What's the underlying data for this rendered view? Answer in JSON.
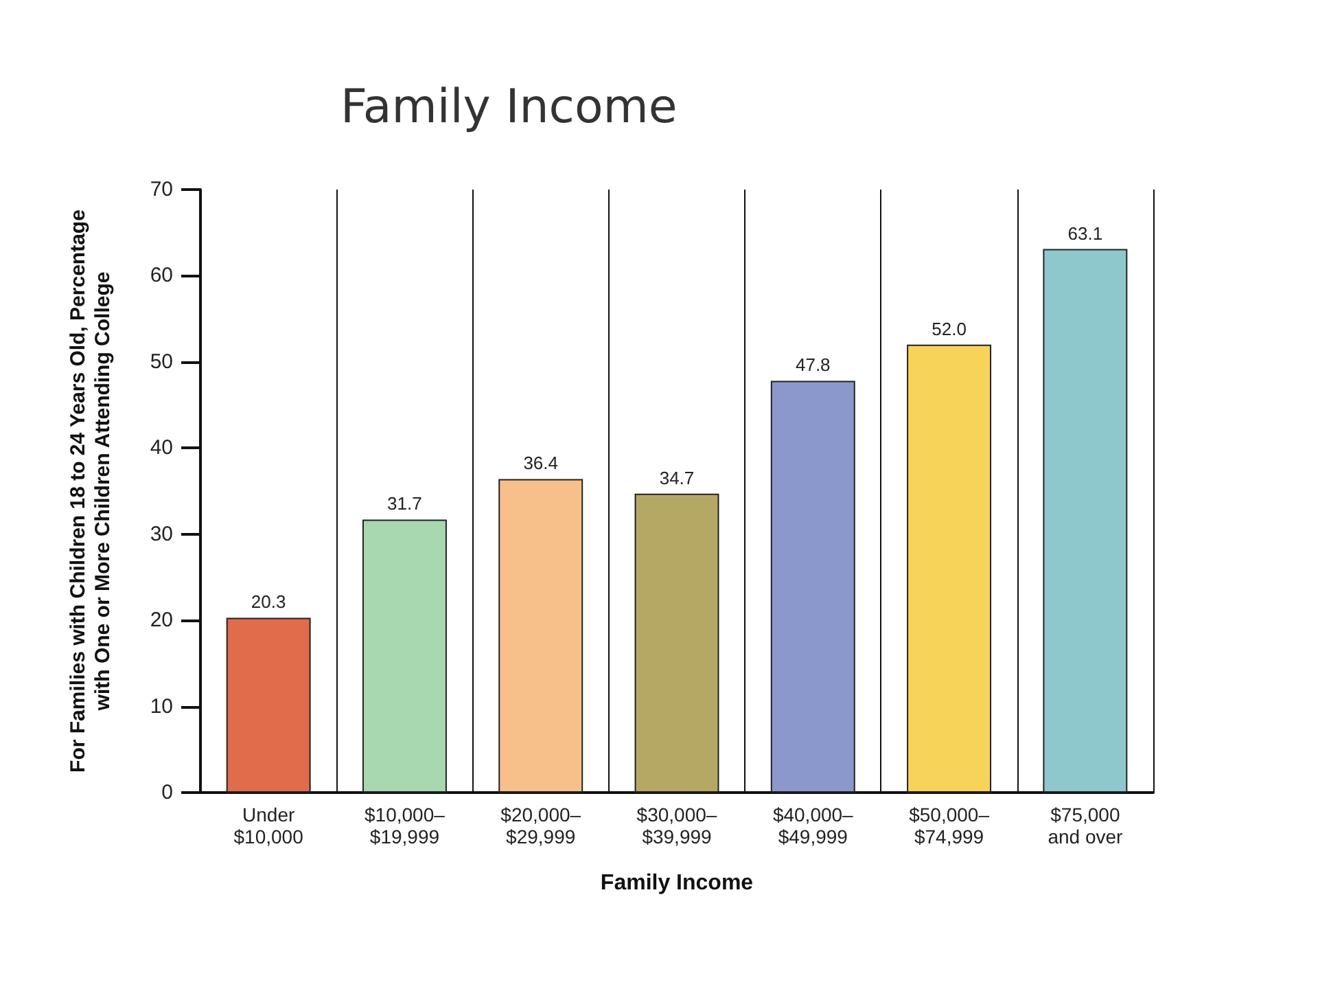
{
  "chart_data": {
    "type": "bar",
    "title": "Family Income",
    "xlabel": "Family Income",
    "ylabel": "For Families with Children 18 to 24 Years Old, Percentage\nwith One or More Children Attending College",
    "categories": [
      "Under\n$10,000",
      "$10,000–\n$19,999",
      "$20,000–\n$29,999",
      "$30,000–\n$39,999",
      "$40,000–\n$49,999",
      "$50,000–\n$74,999",
      "$75,000\nand over"
    ],
    "values": [
      20.3,
      31.7,
      36.4,
      34.7,
      47.8,
      52.0,
      63.1
    ],
    "value_labels": [
      "20.3",
      "31.7",
      "36.4",
      "34.7",
      "47.8",
      "52.0",
      "63.1"
    ],
    "colors": [
      "#e06c4c",
      "#a8d8b0",
      "#f7c08a",
      "#b5a865",
      "#8a98cc",
      "#f7d35a",
      "#8fc8cc"
    ],
    "ylim": [
      0,
      70
    ],
    "yticks": [
      0,
      10,
      20,
      30,
      40,
      50,
      60,
      70
    ],
    "grid": "x"
  }
}
